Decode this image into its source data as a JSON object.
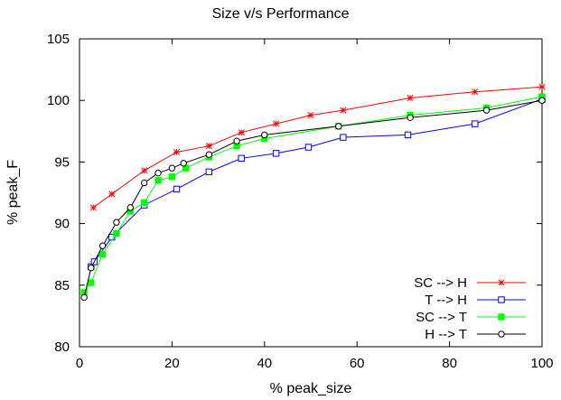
{
  "chart_data": {
    "type": "line",
    "title": "Size v/s Performance",
    "xlabel": "% peak_size",
    "ylabel": "% peak_F",
    "xlim": [
      0,
      100
    ],
    "ylim": [
      80,
      105
    ],
    "xticks": [
      0,
      20,
      40,
      60,
      80,
      100
    ],
    "yticks": [
      80,
      85,
      90,
      95,
      100,
      105
    ],
    "grid": false,
    "legend_position": "bottom-right",
    "series": [
      {
        "name": "SC --> H",
        "color": "#ff0000",
        "marker": "star",
        "points": [
          [
            3,
            91.3
          ],
          [
            7,
            92.4
          ],
          [
            14,
            94.3
          ],
          [
            21,
            95.8
          ],
          [
            28,
            96.3
          ],
          [
            35,
            97.4
          ],
          [
            42.5,
            98.1
          ],
          [
            50,
            98.8
          ],
          [
            57,
            99.2
          ],
          [
            71.5,
            100.2
          ],
          [
            85.5,
            100.7
          ],
          [
            100,
            101.1
          ]
        ]
      },
      {
        "name": "T --> H",
        "color": "#0000ff",
        "marker": "square-open",
        "points": [
          [
            2.5,
            86.5
          ],
          [
            3.2,
            86.9
          ],
          [
            7,
            88.9
          ],
          [
            14,
            91.5
          ],
          [
            21,
            92.8
          ],
          [
            28,
            94.2
          ],
          [
            35,
            95.3
          ],
          [
            42.5,
            95.7
          ],
          [
            49.5,
            96.2
          ],
          [
            57,
            97.0
          ],
          [
            71,
            97.2
          ],
          [
            85.5,
            98.1
          ],
          [
            100,
            100.1
          ]
        ]
      },
      {
        "name": "SC --> T",
        "color": "#00ff00",
        "marker": "square-filled",
        "points": [
          [
            1,
            84.4
          ],
          [
            2.5,
            85.2
          ],
          [
            5,
            87.5
          ],
          [
            8,
            89.2
          ],
          [
            11,
            91.0
          ],
          [
            14,
            91.7
          ],
          [
            17,
            93.5
          ],
          [
            20,
            93.8
          ],
          [
            23,
            94.5
          ],
          [
            28,
            95.4
          ],
          [
            34,
            96.3
          ],
          [
            40,
            96.9
          ],
          [
            56,
            97.9
          ],
          [
            71.5,
            98.8
          ],
          [
            88,
            99.4
          ],
          [
            100,
            100.3
          ]
        ]
      },
      {
        "name": "H --> T",
        "color": "#000000",
        "marker": "circle-open",
        "points": [
          [
            1,
            84.0
          ],
          [
            2.5,
            86.4
          ],
          [
            5,
            88.2
          ],
          [
            8,
            90.1
          ],
          [
            11,
            91.3
          ],
          [
            14,
            93.3
          ],
          [
            17,
            94.1
          ],
          [
            20,
            94.5
          ],
          [
            22.5,
            94.9
          ],
          [
            28,
            95.6
          ],
          [
            34,
            96.7
          ],
          [
            40,
            97.2
          ],
          [
            56,
            97.9
          ],
          [
            71.5,
            98.6
          ],
          [
            88,
            99.2
          ],
          [
            100,
            100.0
          ]
        ]
      }
    ]
  }
}
